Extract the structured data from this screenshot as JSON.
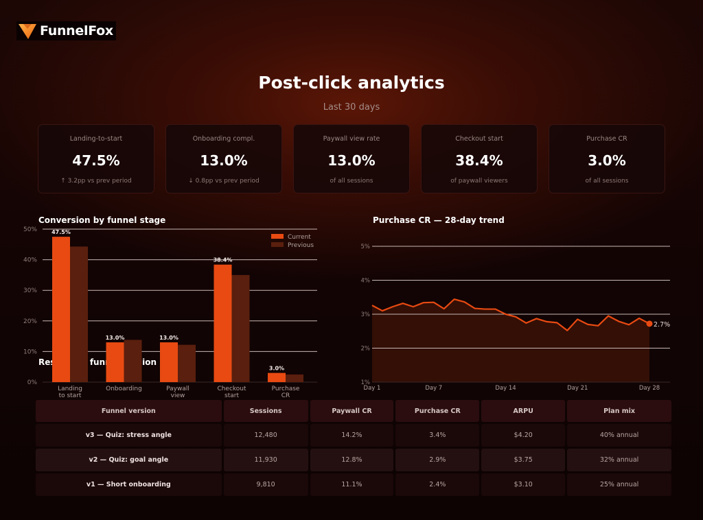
{
  "brand": {
    "name": "FunnelFox",
    "logo_icon": "fox-funnel-icon"
  },
  "header": {
    "title": "Post-click analytics",
    "subtitle": "Last 30 days"
  },
  "kpis": [
    {
      "label": "Landing-to-start",
      "value": "47.5%",
      "sub": "↑ 3.2pp vs prev period"
    },
    {
      "label": "Onboarding compl.",
      "value": "13.0%",
      "sub": "↓ 0.8pp vs prev period"
    },
    {
      "label": "Paywall view rate",
      "value": "13.0%",
      "sub": "of all sessions"
    },
    {
      "label": "Checkout start",
      "value": "38.4%",
      "sub": "of paywall viewers"
    },
    {
      "label": "Purchase CR",
      "value": "3.0%",
      "sub": "of all sessions"
    }
  ],
  "colors": {
    "accent": "#e84a12",
    "previous": "#5a1f0e",
    "background": "#120404"
  },
  "section_title": "Results by funnel version",
  "chart_data": [
    {
      "type": "bar",
      "title": "Conversion by funnel stage",
      "categories": [
        "Landing\nto start",
        "Onboarding",
        "Paywall\nview",
        "Checkout\nstart",
        "Purchase\nCR"
      ],
      "series": [
        {
          "name": "Current",
          "values": [
            47.5,
            13.0,
            13.0,
            38.4,
            3.0
          ],
          "color": "#e84a12"
        },
        {
          "name": "Previous",
          "values": [
            44.3,
            13.8,
            12.2,
            35.0,
            2.5
          ],
          "color": "#5a1f0e"
        }
      ],
      "data_labels": [
        "47.5%",
        "13.0%",
        "13.0%",
        "38.4%",
        "3.0%"
      ],
      "xlabel": "",
      "ylabel": "",
      "yticks": [
        "0%",
        "10%",
        "20%",
        "30%",
        "40%",
        "50%"
      ],
      "ylim": [
        0,
        50
      ],
      "grid": true,
      "legend_position": "upper right"
    },
    {
      "type": "area",
      "title": "Purchase CR — 28-day trend",
      "x": [
        1,
        2,
        3,
        4,
        5,
        6,
        7,
        8,
        9,
        10,
        11,
        12,
        13,
        14,
        15,
        16,
        17,
        18,
        19,
        20,
        21,
        22,
        23,
        24,
        25,
        26,
        27,
        28
      ],
      "series": [
        {
          "name": "Purchase CR",
          "values": [
            3.26,
            3.1,
            3.22,
            3.32,
            3.22,
            3.34,
            3.35,
            3.16,
            3.44,
            3.36,
            3.17,
            3.15,
            3.15,
            3.0,
            2.92,
            2.74,
            2.87,
            2.78,
            2.75,
            2.52,
            2.85,
            2.7,
            2.66,
            2.95,
            2.79,
            2.69,
            2.88,
            2.72
          ],
          "color": "#e84a12"
        }
      ],
      "xticks": [
        "Day 1",
        "Day 7",
        "Day 14",
        "Day 21",
        "Day 28"
      ],
      "yticks": [
        "1%",
        "2%",
        "3%",
        "4%",
        "5%"
      ],
      "ylim": [
        1,
        5.2
      ],
      "end_label": "2.7%",
      "grid": true
    }
  ],
  "table": {
    "headers": [
      "Funnel version",
      "Sessions",
      "Paywall CR",
      "Purchase CR",
      "ARPU",
      "Plan mix"
    ],
    "rows": [
      [
        "v3 — Quiz: stress angle",
        "12,480",
        "14.2%",
        "3.4%",
        "$4.20",
        "40% annual"
      ],
      [
        "v2 — Quiz: goal angle",
        "11,930",
        "12.8%",
        "2.9%",
        "$3.75",
        "32% annual"
      ],
      [
        "v1 — Short onboarding",
        "9,810",
        "11.1%",
        "2.4%",
        "$3.10",
        "25% annual"
      ]
    ]
  }
}
